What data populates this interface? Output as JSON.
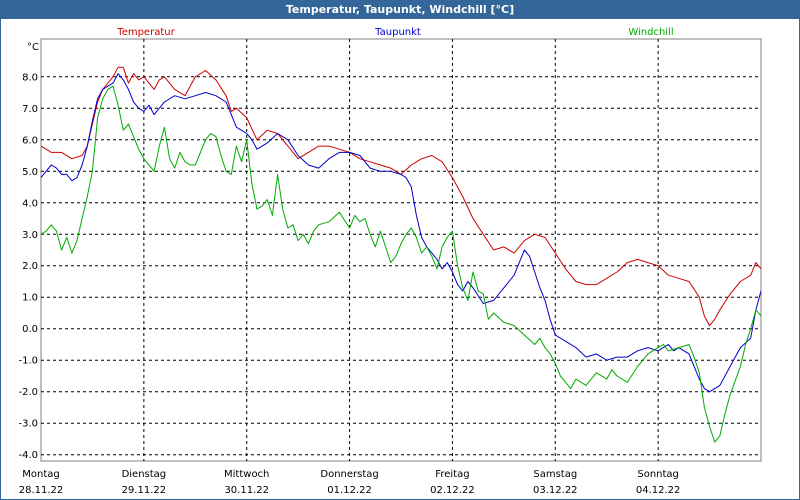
{
  "chart_data": {
    "type": "line",
    "title": "Temperatur, Taupunkt, Windchill [°C]",
    "ylabel": "°C",
    "ylim": [
      -4.2,
      9.2
    ],
    "xlim": [
      0,
      7
    ],
    "grid": true,
    "yticks": [
      8.0,
      7.0,
      6.0,
      5.0,
      4.0,
      3.0,
      2.0,
      1.0,
      0.0,
      -1.0,
      -2.0,
      -3.0,
      -4.0
    ],
    "ytick_labels": [
      "8.0",
      "7.0",
      "6.0",
      "5.0",
      "4.0",
      "3.0",
      "2.0",
      "1.0",
      "0.0",
      "-1.0",
      "-2.0",
      "-3.0",
      "-4.0"
    ],
    "days": [
      {
        "day": "Montag",
        "date": "28.11.22"
      },
      {
        "day": "Dienstag",
        "date": "29.11.22"
      },
      {
        "day": "Mittwoch",
        "date": "30.11.22"
      },
      {
        "day": "Donnerstag",
        "date": "01.12.22"
      },
      {
        "day": "Freitag",
        "date": "02.12.22"
      },
      {
        "day": "Samstag",
        "date": "03.12.22"
      },
      {
        "day": "Sonntag",
        "date": "04.12.22"
      }
    ],
    "series": [
      {
        "name": "Temperatur",
        "color": "#cc0000",
        "legend_position": "left",
        "x": [
          0,
          0.05,
          0.1,
          0.2,
          0.3,
          0.4,
          0.45,
          0.5,
          0.55,
          0.6,
          0.65,
          0.7,
          0.75,
          0.8,
          0.85,
          0.9,
          0.95,
          1.0,
          1.05,
          1.1,
          1.15,
          1.2,
          1.3,
          1.4,
          1.5,
          1.6,
          1.7,
          1.8,
          1.85,
          1.9,
          2.0,
          2.1,
          2.2,
          2.3,
          2.4,
          2.5,
          2.6,
          2.7,
          2.8,
          2.9,
          3.0,
          3.1,
          3.2,
          3.3,
          3.4,
          3.5,
          3.6,
          3.7,
          3.8,
          3.9,
          4.0,
          4.1,
          4.2,
          4.3,
          4.4,
          4.5,
          4.6,
          4.7,
          4.8,
          4.9,
          5.0,
          5.1,
          5.2,
          5.3,
          5.4,
          5.5,
          5.6,
          5.7,
          5.8,
          5.9,
          6.0,
          6.1,
          6.2,
          6.3,
          6.4,
          6.45,
          6.5,
          6.55,
          6.6,
          6.7,
          6.8,
          6.9,
          6.95,
          7.0
        ],
        "values": [
          5.8,
          5.7,
          5.6,
          5.6,
          5.4,
          5.5,
          5.8,
          6.5,
          7.2,
          7.6,
          7.8,
          8.0,
          8.3,
          8.3,
          7.8,
          8.1,
          7.9,
          8.0,
          7.8,
          7.6,
          7.9,
          8.0,
          7.6,
          7.4,
          8.0,
          8.2,
          7.9,
          7.4,
          6.9,
          7.0,
          6.7,
          6.0,
          6.3,
          6.2,
          5.8,
          5.4,
          5.6,
          5.8,
          5.8,
          5.7,
          5.6,
          5.4,
          5.3,
          5.2,
          5.1,
          4.9,
          5.2,
          5.4,
          5.5,
          5.3,
          4.8,
          4.2,
          3.5,
          3.0,
          2.5,
          2.6,
          2.4,
          2.8,
          3.0,
          2.9,
          2.4,
          1.9,
          1.5,
          1.4,
          1.4,
          1.6,
          1.8,
          2.1,
          2.2,
          2.1,
          2.0,
          1.7,
          1.6,
          1.5,
          1.0,
          0.4,
          0.1,
          0.3,
          0.6,
          1.1,
          1.5,
          1.7,
          2.1,
          1.9
        ]
      },
      {
        "name": "Taupunkt",
        "color": "#0000cc",
        "legend_position": "center",
        "x": [
          0,
          0.05,
          0.1,
          0.15,
          0.2,
          0.25,
          0.3,
          0.35,
          0.4,
          0.45,
          0.5,
          0.55,
          0.6,
          0.65,
          0.7,
          0.75,
          0.8,
          0.85,
          0.9,
          0.95,
          1.0,
          1.05,
          1.1,
          1.15,
          1.2,
          1.3,
          1.4,
          1.5,
          1.6,
          1.7,
          1.8,
          1.85,
          1.9,
          1.95,
          2.0,
          2.05,
          2.1,
          2.2,
          2.3,
          2.4,
          2.5,
          2.6,
          2.7,
          2.8,
          2.9,
          3.0,
          3.1,
          3.2,
          3.3,
          3.4,
          3.5,
          3.55,
          3.6,
          3.65,
          3.7,
          3.75,
          3.8,
          3.85,
          3.9,
          3.95,
          4.0,
          4.05,
          4.1,
          4.15,
          4.2,
          4.3,
          4.4,
          4.5,
          4.6,
          4.7,
          4.75,
          4.8,
          4.85,
          4.9,
          4.95,
          5.0,
          5.1,
          5.2,
          5.3,
          5.4,
          5.5,
          5.6,
          5.7,
          5.8,
          5.9,
          6.0,
          6.05,
          6.1,
          6.15,
          6.2,
          6.3,
          6.4,
          6.45,
          6.5,
          6.6,
          6.7,
          6.8,
          6.9,
          6.95,
          7.0
        ],
        "values": [
          4.8,
          5.0,
          5.2,
          5.1,
          4.9,
          4.9,
          4.7,
          4.8,
          5.2,
          5.8,
          6.6,
          7.3,
          7.6,
          7.7,
          7.8,
          8.1,
          7.9,
          7.6,
          7.2,
          7.0,
          6.9,
          7.1,
          6.8,
          7.0,
          7.2,
          7.4,
          7.3,
          7.4,
          7.5,
          7.4,
          7.2,
          6.8,
          6.4,
          6.3,
          6.2,
          6.0,
          5.7,
          5.9,
          6.2,
          6.0,
          5.5,
          5.2,
          5.1,
          5.4,
          5.6,
          5.6,
          5.5,
          5.1,
          5.0,
          5.0,
          4.9,
          4.8,
          4.5,
          3.6,
          2.9,
          2.6,
          2.4,
          2.2,
          1.9,
          2.1,
          1.8,
          1.4,
          1.2,
          1.5,
          1.3,
          0.8,
          0.9,
          1.3,
          1.7,
          2.5,
          2.3,
          1.8,
          1.3,
          0.9,
          0.3,
          -0.2,
          -0.4,
          -0.6,
          -0.9,
          -0.8,
          -1.0,
          -0.9,
          -0.9,
          -0.7,
          -0.6,
          -0.7,
          -0.6,
          -0.5,
          -0.7,
          -0.6,
          -0.8,
          -1.6,
          -1.9,
          -2.0,
          -1.8,
          -1.2,
          -0.6,
          -0.3,
          0.6,
          1.2
        ]
      },
      {
        "name": "Windchill",
        "color": "#00aa00",
        "legend_position": "right",
        "x": [
          0,
          0.05,
          0.1,
          0.15,
          0.2,
          0.25,
          0.3,
          0.35,
          0.4,
          0.45,
          0.5,
          0.55,
          0.6,
          0.65,
          0.7,
          0.75,
          0.8,
          0.85,
          0.9,
          0.95,
          1.0,
          1.05,
          1.1,
          1.15,
          1.2,
          1.25,
          1.3,
          1.35,
          1.4,
          1.45,
          1.5,
          1.55,
          1.6,
          1.65,
          1.7,
          1.75,
          1.8,
          1.85,
          1.9,
          1.95,
          2.0,
          2.05,
          2.1,
          2.15,
          2.2,
          2.25,
          2.3,
          2.35,
          2.4,
          2.45,
          2.5,
          2.55,
          2.6,
          2.65,
          2.7,
          2.8,
          2.9,
          3.0,
          3.05,
          3.1,
          3.15,
          3.2,
          3.25,
          3.3,
          3.35,
          3.4,
          3.45,
          3.5,
          3.55,
          3.6,
          3.65,
          3.7,
          3.75,
          3.8,
          3.85,
          3.9,
          3.95,
          4.0,
          4.05,
          4.1,
          4.15,
          4.2,
          4.25,
          4.3,
          4.35,
          4.4,
          4.5,
          4.6,
          4.7,
          4.8,
          4.85,
          4.9,
          4.95,
          5.0,
          5.05,
          5.1,
          5.15,
          5.2,
          5.3,
          5.4,
          5.5,
          5.55,
          5.6,
          5.7,
          5.8,
          5.9,
          6.0,
          6.05,
          6.1,
          6.2,
          6.3,
          6.35,
          6.4,
          6.45,
          6.5,
          6.55,
          6.6,
          6.65,
          6.7,
          6.8,
          6.85,
          6.9,
          6.95,
          7.0
        ],
        "values": [
          3.0,
          3.1,
          3.3,
          3.1,
          2.5,
          2.9,
          2.4,
          2.8,
          3.5,
          4.2,
          5.0,
          6.7,
          7.3,
          7.6,
          7.7,
          7.1,
          6.3,
          6.5,
          6.1,
          5.7,
          5.4,
          5.2,
          5.0,
          5.8,
          6.4,
          5.4,
          5.1,
          5.6,
          5.3,
          5.2,
          5.2,
          5.6,
          6.0,
          6.2,
          6.1,
          5.5,
          5.0,
          4.9,
          5.8,
          5.3,
          6.0,
          4.6,
          3.8,
          3.9,
          4.1,
          3.6,
          4.9,
          3.8,
          3.2,
          3.3,
          2.8,
          3.0,
          2.7,
          3.1,
          3.3,
          3.4,
          3.7,
          3.2,
          3.6,
          3.4,
          3.5,
          3.0,
          2.6,
          3.1,
          2.6,
          2.1,
          2.3,
          2.7,
          3.0,
          3.2,
          2.9,
          2.4,
          2.6,
          2.3,
          1.9,
          2.6,
          2.9,
          3.1,
          2.0,
          1.3,
          0.9,
          1.8,
          1.2,
          1.1,
          0.3,
          0.5,
          0.2,
          0.1,
          -0.2,
          -0.5,
          -0.3,
          -0.6,
          -0.8,
          -1.1,
          -1.5,
          -1.7,
          -1.9,
          -1.6,
          -1.8,
          -1.4,
          -1.6,
          -1.3,
          -1.5,
          -1.7,
          -1.2,
          -0.8,
          -0.6,
          -0.5,
          -0.7,
          -0.6,
          -0.5,
          -0.9,
          -1.4,
          -2.5,
          -3.1,
          -3.6,
          -3.4,
          -2.7,
          -2.1,
          -1.2,
          -0.5,
          0.0,
          0.6,
          0.4
        ]
      }
    ]
  }
}
